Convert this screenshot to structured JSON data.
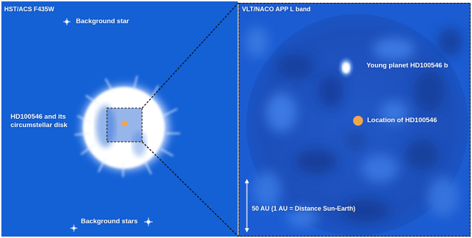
{
  "left_panel": {
    "title": "HST/ACS F435W",
    "background_star_label": "Background star",
    "star_disk_label": "HD100546 and its circumstellar disk",
    "background_stars_label": "Background stars"
  },
  "right_panel": {
    "title": "VLT/NACO APP L band",
    "planet_label": "Young planet HD100546 b",
    "location_label": "Location of HD100546",
    "scale_label": "50 AU (1 AU = Distance Sun-Earth)"
  },
  "colors": {
    "left_background": "#1461d6",
    "right_background": "#1c5cd2",
    "star_marker": "#f2a64a",
    "label_text": "#ffffff"
  }
}
